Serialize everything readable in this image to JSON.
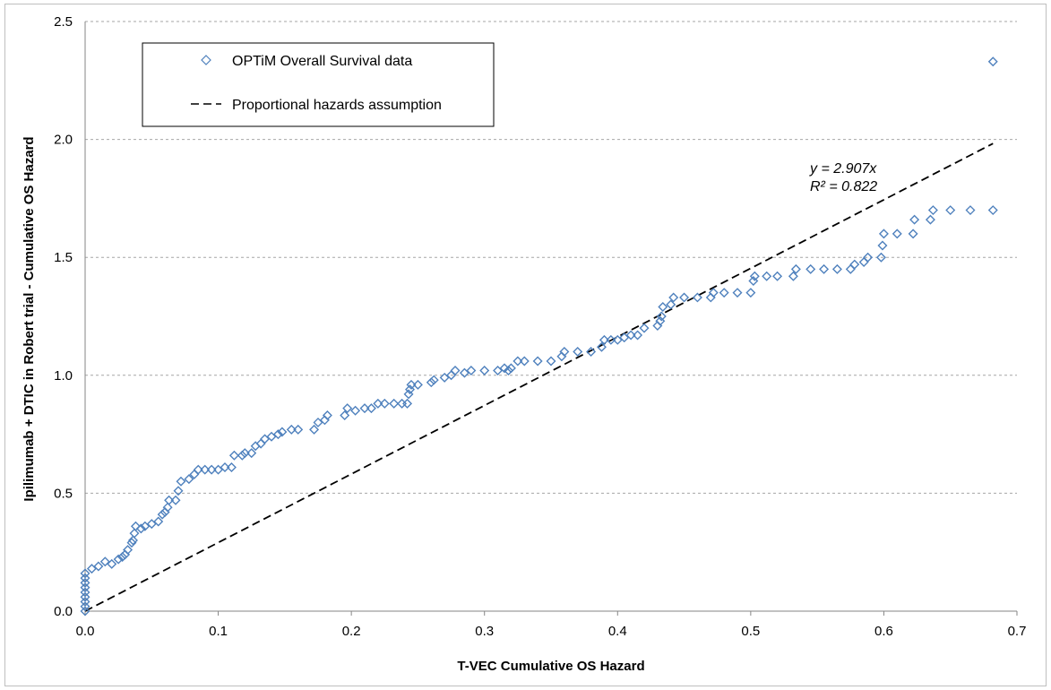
{
  "chart_data": {
    "type": "scatter",
    "title": "",
    "xlabel": "T-VEC Cumulative  OS Hazard",
    "ylabel": "Ipilimumab  + DTIC in Robert  trial - Cumulative OS Hazard",
    "xlim": [
      0,
      0.7
    ],
    "ylim": [
      0,
      2.5
    ],
    "x_ticks": [
      "0.0",
      "0.1",
      "0.2",
      "0.3",
      "0.4",
      "0.5",
      "0.6",
      "0.7"
    ],
    "y_ticks": [
      "0.0",
      "0.5",
      "1.0",
      "1.5",
      "2.0",
      "2.5"
    ],
    "grid": "horizontal dashed",
    "legend_position": "top-left",
    "legend": [
      {
        "label": "OPTiM Overall Survival data",
        "marker": "diamond",
        "color": "#4f81bd"
      },
      {
        "label": "Proportional hazards assumption",
        "marker": "dashed-line",
        "color": "#000000"
      }
    ],
    "annotations": {
      "equation": "y = 2.907x",
      "r_squared": "R² = 0.822"
    },
    "series": [
      {
        "name": "OPTiM Overall Survival data",
        "color": "#4f81bd",
        "points": [
          [
            0,
            0
          ],
          [
            0,
            0.02
          ],
          [
            0,
            0.04
          ],
          [
            0,
            0.06
          ],
          [
            0,
            0.08
          ],
          [
            0,
            0.1
          ],
          [
            0,
            0.12
          ],
          [
            0,
            0.14
          ],
          [
            0,
            0.16
          ],
          [
            0.005,
            0.18
          ],
          [
            0.01,
            0.19
          ],
          [
            0.015,
            0.21
          ],
          [
            0.02,
            0.2
          ],
          [
            0.025,
            0.22
          ],
          [
            0.028,
            0.23
          ],
          [
            0.03,
            0.24
          ],
          [
            0.032,
            0.26
          ],
          [
            0.035,
            0.29
          ],
          [
            0.036,
            0.3
          ],
          [
            0.037,
            0.33
          ],
          [
            0.038,
            0.36
          ],
          [
            0.042,
            0.35
          ],
          [
            0.045,
            0.36
          ],
          [
            0.05,
            0.37
          ],
          [
            0.055,
            0.38
          ],
          [
            0.058,
            0.41
          ],
          [
            0.06,
            0.42
          ],
          [
            0.062,
            0.44
          ],
          [
            0.063,
            0.47
          ],
          [
            0.068,
            0.47
          ],
          [
            0.07,
            0.51
          ],
          [
            0.072,
            0.55
          ],
          [
            0.078,
            0.56
          ],
          [
            0.082,
            0.58
          ],
          [
            0.085,
            0.6
          ],
          [
            0.09,
            0.6
          ],
          [
            0.095,
            0.6
          ],
          [
            0.1,
            0.6
          ],
          [
            0.105,
            0.61
          ],
          [
            0.11,
            0.61
          ],
          [
            0.112,
            0.66
          ],
          [
            0.118,
            0.66
          ],
          [
            0.12,
            0.67
          ],
          [
            0.125,
            0.67
          ],
          [
            0.128,
            0.7
          ],
          [
            0.132,
            0.71
          ],
          [
            0.135,
            0.73
          ],
          [
            0.14,
            0.74
          ],
          [
            0.145,
            0.75
          ],
          [
            0.148,
            0.76
          ],
          [
            0.155,
            0.77
          ],
          [
            0.16,
            0.77
          ],
          [
            0.172,
            0.77
          ],
          [
            0.175,
            0.8
          ],
          [
            0.18,
            0.81
          ],
          [
            0.182,
            0.83
          ],
          [
            0.195,
            0.83
          ],
          [
            0.197,
            0.86
          ],
          [
            0.203,
            0.85
          ],
          [
            0.21,
            0.86
          ],
          [
            0.215,
            0.86
          ],
          [
            0.22,
            0.88
          ],
          [
            0.225,
            0.88
          ],
          [
            0.232,
            0.88
          ],
          [
            0.238,
            0.88
          ],
          [
            0.242,
            0.88
          ],
          [
            0.243,
            0.92
          ],
          [
            0.244,
            0.94
          ],
          [
            0.245,
            0.96
          ],
          [
            0.25,
            0.96
          ],
          [
            0.26,
            0.97
          ],
          [
            0.262,
            0.98
          ],
          [
            0.27,
            0.99
          ],
          [
            0.275,
            1.0
          ],
          [
            0.278,
            1.02
          ],
          [
            0.285,
            1.01
          ],
          [
            0.29,
            1.02
          ],
          [
            0.3,
            1.02
          ],
          [
            0.31,
            1.02
          ],
          [
            0.315,
            1.03
          ],
          [
            0.318,
            1.02
          ],
          [
            0.32,
            1.03
          ],
          [
            0.325,
            1.06
          ],
          [
            0.33,
            1.06
          ],
          [
            0.34,
            1.06
          ],
          [
            0.35,
            1.06
          ],
          [
            0.358,
            1.08
          ],
          [
            0.36,
            1.1
          ],
          [
            0.37,
            1.1
          ],
          [
            0.38,
            1.1
          ],
          [
            0.388,
            1.12
          ],
          [
            0.39,
            1.15
          ],
          [
            0.395,
            1.15
          ],
          [
            0.4,
            1.15
          ],
          [
            0.405,
            1.16
          ],
          [
            0.41,
            1.17
          ],
          [
            0.415,
            1.17
          ],
          [
            0.42,
            1.2
          ],
          [
            0.43,
            1.21
          ],
          [
            0.432,
            1.23
          ],
          [
            0.433,
            1.25
          ],
          [
            0.434,
            1.29
          ],
          [
            0.44,
            1.3
          ],
          [
            0.442,
            1.33
          ],
          [
            0.45,
            1.33
          ],
          [
            0.46,
            1.33
          ],
          [
            0.47,
            1.33
          ],
          [
            0.472,
            1.35
          ],
          [
            0.48,
            1.35
          ],
          [
            0.49,
            1.35
          ],
          [
            0.5,
            1.35
          ],
          [
            0.502,
            1.4
          ],
          [
            0.503,
            1.42
          ],
          [
            0.512,
            1.42
          ],
          [
            0.52,
            1.42
          ],
          [
            0.532,
            1.42
          ],
          [
            0.534,
            1.45
          ],
          [
            0.545,
            1.45
          ],
          [
            0.555,
            1.45
          ],
          [
            0.565,
            1.45
          ],
          [
            0.575,
            1.45
          ],
          [
            0.578,
            1.47
          ],
          [
            0.585,
            1.48
          ],
          [
            0.588,
            1.5
          ],
          [
            0.598,
            1.5
          ],
          [
            0.599,
            1.55
          ],
          [
            0.6,
            1.6
          ],
          [
            0.61,
            1.6
          ],
          [
            0.622,
            1.6
          ],
          [
            0.623,
            1.66
          ],
          [
            0.635,
            1.66
          ],
          [
            0.637,
            1.7
          ],
          [
            0.65,
            1.7
          ],
          [
            0.665,
            1.7
          ],
          [
            0.682,
            1.7
          ],
          [
            0.682,
            2.33
          ]
        ]
      },
      {
        "name": "Proportional hazards assumption",
        "color": "#000000",
        "line": {
          "slope": 2.907,
          "x_from": 0,
          "x_to": 0.682
        }
      }
    ]
  }
}
